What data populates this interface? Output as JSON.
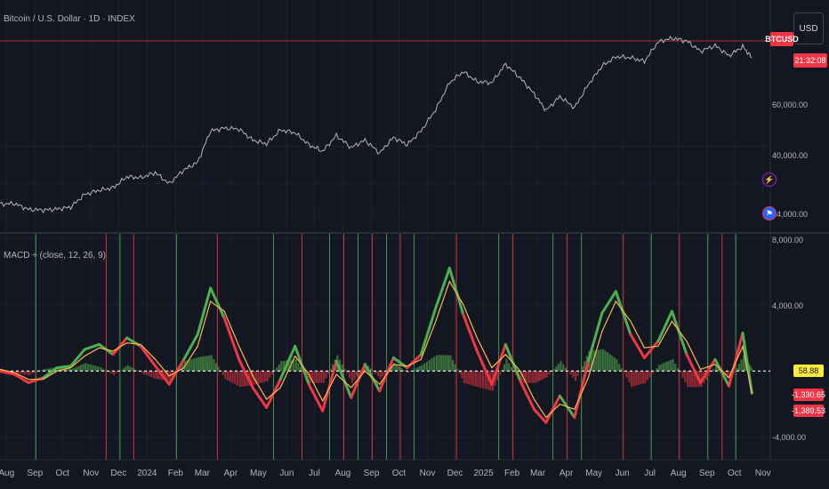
{
  "header": {
    "title": "Bitcoin / U.S. Dollar · 1D · INDEX",
    "currency_button": "USD",
    "symbol_tag": "BTCUSD",
    "countdown_tag": "21:32:08"
  },
  "indicator": {
    "label": "MACD ÷ (close, 12, 26, 9)"
  },
  "price_axis": {
    "labels": [
      "60,000.00",
      "40,000.00",
      "24,000.00"
    ]
  },
  "macd_axis": {
    "labels": [
      "8,000.00",
      "4,000.00",
      "-4,000.00"
    ]
  },
  "badges": {
    "histogram": "58.88",
    "macd": "-1,330.65",
    "signal": "-1,389.53"
  },
  "icons": {
    "bolt": "lightning-bolt-icon",
    "flag": "us-flag-icon"
  },
  "colors": {
    "background": "#131722",
    "grid": "#1e2230",
    "price_line": "#b2b5be",
    "bull": "#4caf50",
    "bear": "#f23645",
    "signal": "#ffeb3b",
    "zero": "#ffffff"
  },
  "chart_data": [
    {
      "type": "line",
      "title": "Bitcoin / U.S. Dollar · 1D · INDEX",
      "x": [
        "2023-07-25",
        "2023-08-10",
        "2023-08-25",
        "2023-09-10",
        "2023-09-25",
        "2023-10-10",
        "2023-10-25",
        "2023-11-10",
        "2023-11-25",
        "2023-12-10",
        "2023-12-25",
        "2024-01-10",
        "2024-01-25",
        "2024-02-10",
        "2024-02-25",
        "2024-03-10",
        "2024-03-25",
        "2024-04-10",
        "2024-04-25",
        "2024-05-10",
        "2024-05-25",
        "2024-06-10",
        "2024-06-25",
        "2024-07-10",
        "2024-07-25",
        "2024-08-10",
        "2024-08-25",
        "2024-09-10",
        "2024-09-25",
        "2024-10-10",
        "2024-10-25",
        "2024-11-10",
        "2024-11-25",
        "2024-12-10",
        "2024-12-25",
        "2025-01-10",
        "2025-01-25",
        "2025-02-10",
        "2025-02-25",
        "2025-03-10",
        "2025-03-25",
        "2025-04-10",
        "2025-04-25",
        "2025-05-10",
        "2025-05-25",
        "2025-06-10",
        "2025-06-25",
        "2025-07-10",
        "2025-07-25",
        "2025-08-10",
        "2025-08-25",
        "2025-09-10",
        "2025-09-25",
        "2025-10-10",
        "2025-10-20"
      ],
      "values": [
        29000,
        29300,
        26100,
        25800,
        26300,
        27400,
        34200,
        36500,
        37800,
        43800,
        43200,
        46000,
        40000,
        47500,
        51500,
        68500,
        70000,
        69500,
        63500,
        61500,
        69000,
        67500,
        61000,
        57500,
        66000,
        59500,
        63500,
        56500,
        65000,
        61000,
        68500,
        80000,
        94500,
        100500,
        95000,
        94500,
        104500,
        97000,
        88500,
        79500,
        87000,
        81000,
        93500,
        103500,
        108500,
        108000,
        106000,
        116500,
        118500,
        117000,
        111500,
        114500,
        109000,
        114000,
        108000
      ],
      "series_name": "BTCUSD",
      "axis_labels": [
        "60,000.00",
        "40,000.00",
        "24,000.00"
      ]
    },
    {
      "type": "line",
      "title": "MACD ÷ (close, 12, 26, 9)",
      "x_ticks": [
        "Aug",
        "Sep",
        "Oct",
        "Nov",
        "Dec",
        "2024",
        "Feb",
        "Mar",
        "Apr",
        "May",
        "Jun",
        "Jul",
        "Aug",
        "Sep",
        "Oct",
        "Nov",
        "Dec",
        "2025",
        "Feb",
        "Mar",
        "Apr",
        "May",
        "Jun",
        "Jul",
        "Aug",
        "Sep",
        "Oct",
        "Nov"
      ],
      "x": [
        "2023-07-25",
        "2023-08-10",
        "2023-08-25",
        "2023-09-10",
        "2023-09-25",
        "2023-10-10",
        "2023-10-25",
        "2023-11-10",
        "2023-11-25",
        "2023-12-10",
        "2023-12-25",
        "2024-01-10",
        "2024-01-25",
        "2024-02-10",
        "2024-02-25",
        "2024-03-10",
        "2024-03-25",
        "2024-04-10",
        "2024-04-25",
        "2024-05-10",
        "2024-05-25",
        "2024-06-10",
        "2024-06-25",
        "2024-07-10",
        "2024-07-25",
        "2024-08-10",
        "2024-08-25",
        "2024-09-10",
        "2024-09-25",
        "2024-10-10",
        "2024-10-25",
        "2024-11-10",
        "2024-11-25",
        "2024-12-10",
        "2024-12-25",
        "2025-01-10",
        "2025-01-25",
        "2025-02-10",
        "2025-02-25",
        "2025-03-10",
        "2025-03-25",
        "2025-04-10",
        "2025-04-25",
        "2025-05-10",
        "2025-05-25",
        "2025-06-10",
        "2025-06-25",
        "2025-07-10",
        "2025-07-25",
        "2025-08-10",
        "2025-08-25",
        "2025-09-10",
        "2025-09-25",
        "2025-10-10",
        "2025-10-20"
      ],
      "macd": [
        0,
        -200,
        -700,
        -400,
        200,
        300,
        1300,
        1600,
        1000,
        2000,
        1500,
        300,
        -800,
        700,
        2200,
        5000,
        3200,
        700,
        -1000,
        -2200,
        -500,
        1500,
        -800,
        -2400,
        600,
        -1600,
        400,
        -1200,
        800,
        200,
        1000,
        3800,
        6200,
        3400,
        1200,
        -800,
        1600,
        -600,
        -2300,
        -3100,
        -1500,
        -2800,
        600,
        3500,
        4800,
        2200,
        800,
        1800,
        3600,
        1000,
        -700,
        700,
        -900,
        2300,
        -1330
      ],
      "signal": [
        100,
        -100,
        -500,
        -500,
        0,
        200,
        900,
        1400,
        1200,
        1700,
        1600,
        700,
        -300,
        200,
        1500,
        4200,
        3600,
        1500,
        -300,
        -1700,
        -1000,
        900,
        -200,
        -1800,
        -200,
        -1000,
        0,
        -800,
        400,
        300,
        700,
        3000,
        5400,
        4000,
        2000,
        200,
        1000,
        0,
        -1700,
        -2800,
        -2000,
        -2300,
        -400,
        2400,
        4200,
        3000,
        1400,
        1500,
        3000,
        1800,
        100,
        400,
        -400,
        1500,
        -1389
      ],
      "ylim": [
        -4000,
        8000
      ],
      "axis_labels": [
        "8,000.00",
        "4,000.00",
        "-4,000.00"
      ],
      "last_values": {
        "histogram": 58.88,
        "macd": -1330.65,
        "signal": -1389.53
      }
    }
  ]
}
